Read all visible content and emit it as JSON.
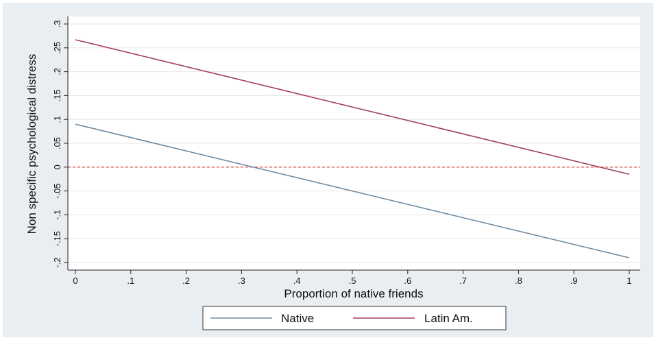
{
  "chart_data": {
    "type": "line",
    "xlabel": "Proportion of native friends",
    "ylabel": "Non specific psychological distress",
    "xlim": [
      0,
      1
    ],
    "ylim": [
      -0.2,
      0.3
    ],
    "x_ticks": [
      0,
      0.1,
      0.2,
      0.3,
      0.4,
      0.5,
      0.6,
      0.7,
      0.8,
      0.9,
      1
    ],
    "x_tick_labels": [
      "0",
      ".1",
      ".2",
      ".3",
      ".4",
      ".5",
      ".6",
      ".7",
      ".8",
      ".9",
      "1"
    ],
    "y_ticks": [
      -0.2,
      -0.15,
      -0.1,
      -0.05,
      0,
      0.05,
      0.1,
      0.15,
      0.2,
      0.25,
      0.3
    ],
    "y_tick_labels": [
      "-.2",
      "-.15",
      "-.1",
      "-.05",
      "0",
      ".05",
      ".1",
      ".15",
      ".2",
      ".25",
      ".3"
    ],
    "grid": true,
    "reference_line": {
      "y": 0,
      "color": "#e0302e",
      "style": "dashed"
    },
    "legend_position": "bottom",
    "series": [
      {
        "name": "Native",
        "color": "#6e8ca4",
        "x": [
          0,
          1
        ],
        "y": [
          0.09,
          -0.19
        ]
      },
      {
        "name": "Latin Am.",
        "color": "#a23e52",
        "x": [
          0,
          1
        ],
        "y": [
          0.267,
          -0.015
        ]
      }
    ]
  }
}
